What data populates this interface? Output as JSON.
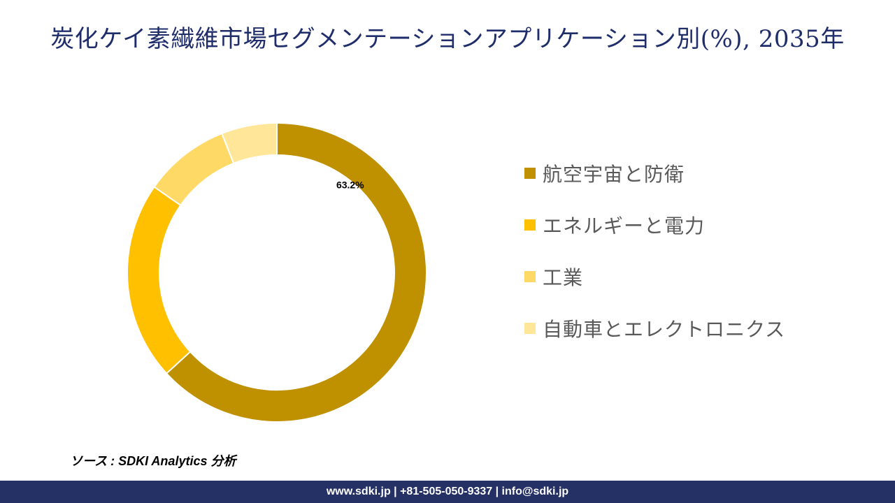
{
  "header": {
    "title": "炭化ケイ素繊維市場セグメンテーションアプリケーション別(%), 2035年"
  },
  "chart_data": {
    "type": "pie",
    "donut": true,
    "title": "炭化ケイ素繊維市場セグメンテーションアプリケーション別(%), 2035年",
    "legend_position": "right",
    "categories": [
      "航空宇宙と防衛",
      "エネルギーと電力",
      "工業",
      "自動車とエレクトロニクス"
    ],
    "values": [
      63.2,
      21.5,
      9.3,
      6.0
    ],
    "colors": [
      "#bf9000",
      "#ffc000",
      "#ffd966",
      "#ffe699"
    ],
    "data_labels": [
      "63.2%",
      "",
      "",
      ""
    ]
  },
  "source": {
    "text": "ソース : SDKI Analytics 分析"
  },
  "footer": {
    "text": "www.sdki.jp | +81-505-050-9337 | info@sdki.jp"
  }
}
